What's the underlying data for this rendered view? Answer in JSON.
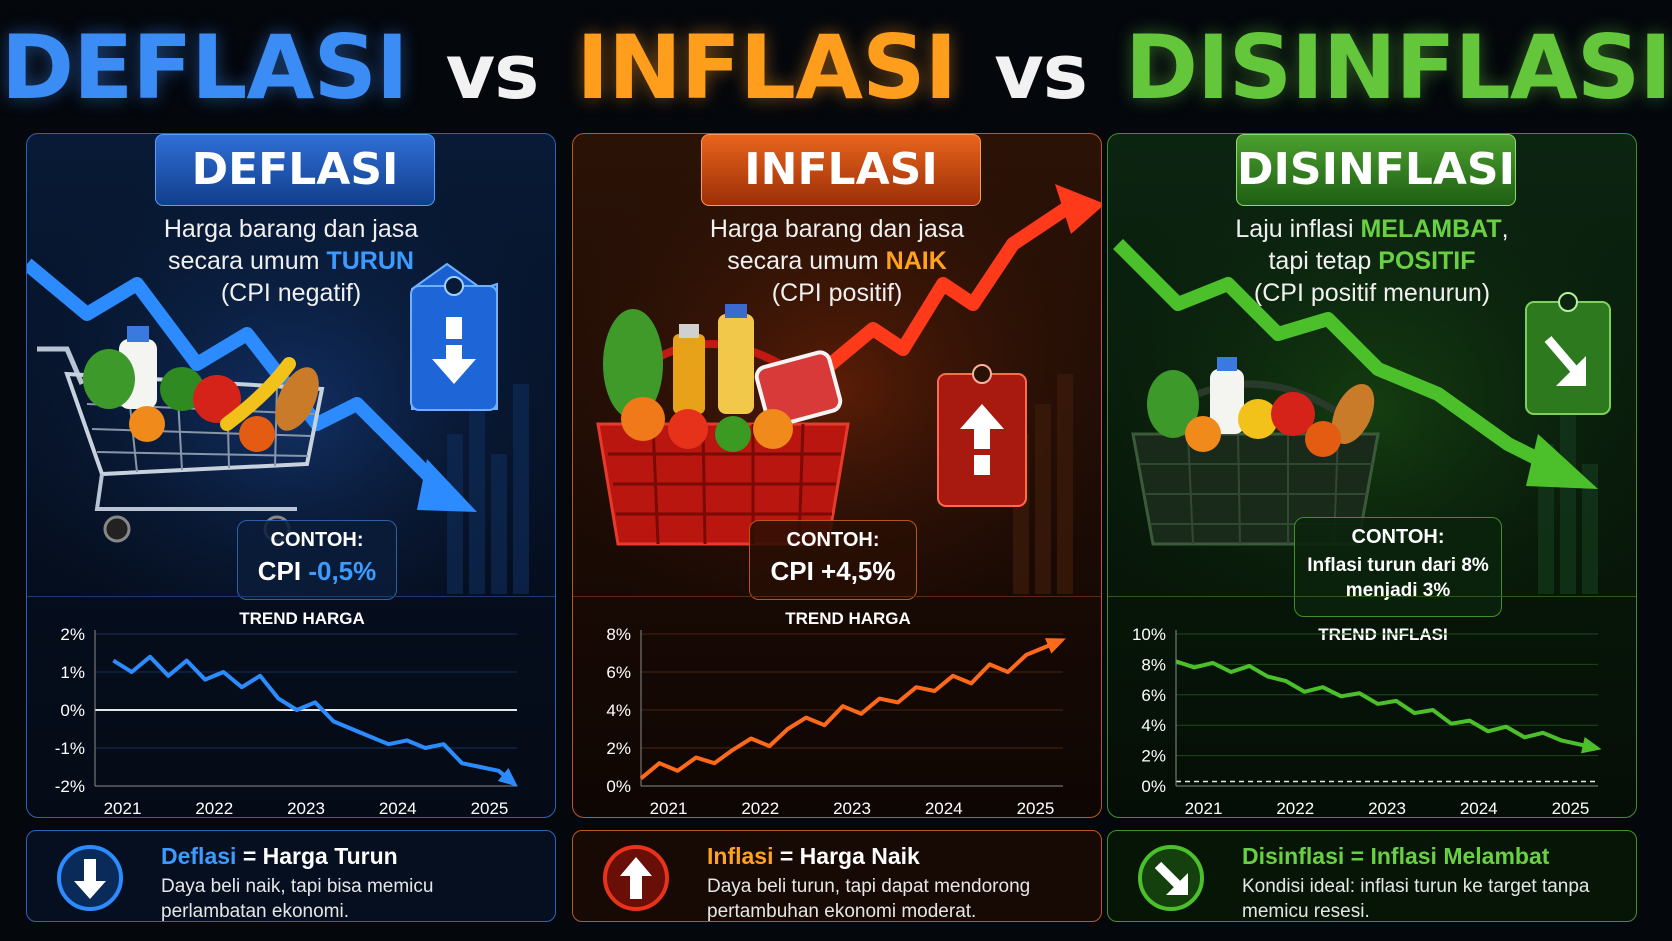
{
  "title": {
    "part1": "DEFLASI",
    "vs1": "vs",
    "part2": "INFLASI",
    "vs2": "vs",
    "part3": "DISINFLASI"
  },
  "colors": {
    "deflasi": "#3b8cf5",
    "inflasi": "#ff9d1c",
    "disinflasi": "#63c63b"
  },
  "panels": [
    {
      "badge": "DEFLASI",
      "desc_line1": "Harga barang dan jasa",
      "desc_line2_pre": "secara umum ",
      "desc_line2_hl": "TURUN",
      "desc_line2_post": "",
      "desc_line3": "(CPI negatif)",
      "tag_icon": "arrow-down-icon",
      "example_label": "CONTOH:",
      "example_pre": "CPI ",
      "example_hl": "-0,5%",
      "example_line2": "",
      "chart_title": "TREND HARGA"
    },
    {
      "badge": "INFLASI",
      "desc_line1": "Harga barang dan jasa",
      "desc_line2_pre": "secara umum ",
      "desc_line2_hl": "NAIK",
      "desc_line2_post": "",
      "desc_line3": "(CPI positif)",
      "tag_icon": "arrow-up-icon",
      "example_label": "CONTOH:",
      "example_pre": "CPI +4,5%",
      "example_hl": "",
      "example_line2": "",
      "chart_title": "TREND HARGA"
    },
    {
      "badge": "DISINFLASI",
      "desc_line1_pre": "Laju inflasi ",
      "desc_line1_hl": "MELAMBAT",
      "desc_line1_post": ",",
      "desc_line2_pre": "tapi tetap ",
      "desc_line2_hl": "POSITIF",
      "desc_line2_post": "",
      "desc_line3": "(CPI positif menurun)",
      "tag_icon": "arrow-down-right-icon",
      "example_label": "CONTOH:",
      "example_pre": "Inflasi turun dari 8%",
      "example_hl": "",
      "example_line2": "menjadi 3%",
      "chart_title": "TREND INFLASI"
    }
  ],
  "chart_data": [
    {
      "type": "line",
      "title": "TREND HARGA",
      "x": [
        2020.9,
        2021.1,
        2021.3,
        2021.5,
        2021.7,
        2021.9,
        2022.1,
        2022.3,
        2022.5,
        2022.7,
        2022.9,
        2023.1,
        2023.3,
        2023.5,
        2023.7,
        2023.9,
        2024.1,
        2024.3,
        2024.5,
        2024.7,
        2024.9,
        2025.1,
        2025.2
      ],
      "values": [
        1.3,
        1.0,
        1.4,
        0.9,
        1.3,
        0.8,
        1.0,
        0.6,
        0.9,
        0.3,
        0.0,
        0.2,
        -0.3,
        -0.5,
        -0.7,
        -0.9,
        -0.8,
        -1.0,
        -0.9,
        -1.4,
        -1.5,
        -1.6,
        -1.8
      ],
      "xticks": [
        "2021",
        "2022",
        "2023",
        "2024",
        "2025"
      ],
      "yticks": [
        "2%",
        "1%",
        "0%",
        "-1%",
        "-2%"
      ],
      "ylim": [
        -2,
        2
      ],
      "zero_line": true
    },
    {
      "type": "line",
      "title": "TREND HARGA",
      "x": [
        2020.7,
        2020.9,
        2021.1,
        2021.3,
        2021.5,
        2021.7,
        2021.9,
        2022.1,
        2022.3,
        2022.5,
        2022.7,
        2022.9,
        2023.1,
        2023.3,
        2023.5,
        2023.7,
        2023.9,
        2024.1,
        2024.3,
        2024.5,
        2024.7,
        2024.9,
        2025.2
      ],
      "values": [
        0.4,
        1.2,
        0.8,
        1.5,
        1.2,
        1.9,
        2.5,
        2.1,
        3.0,
        3.6,
        3.2,
        4.2,
        3.8,
        4.6,
        4.4,
        5.2,
        5.0,
        5.8,
        5.4,
        6.4,
        6.0,
        6.9,
        7.5
      ],
      "xticks": [
        "2021",
        "2022",
        "2023",
        "2024",
        "2025"
      ],
      "yticks": [
        "8%",
        "6%",
        "4%",
        "2%",
        "0%"
      ],
      "ylim": [
        0,
        8
      ],
      "zero_line": false
    },
    {
      "type": "line",
      "title": "TREND INFLASI",
      "x": [
        2020.7,
        2020.9,
        2021.1,
        2021.3,
        2021.5,
        2021.7,
        2021.9,
        2022.1,
        2022.3,
        2022.5,
        2022.7,
        2022.9,
        2023.1,
        2023.3,
        2023.5,
        2023.7,
        2023.9,
        2024.1,
        2024.3,
        2024.5,
        2024.7,
        2024.9,
        2025.2
      ],
      "values": [
        8.2,
        7.8,
        8.1,
        7.5,
        7.9,
        7.2,
        6.9,
        6.2,
        6.5,
        5.9,
        6.1,
        5.4,
        5.6,
        4.8,
        5.0,
        4.1,
        4.3,
        3.6,
        3.9,
        3.2,
        3.5,
        3.0,
        2.6
      ],
      "xticks": [
        "2021",
        "2022",
        "2023",
        "2024",
        "2025"
      ],
      "yticks": [
        "10%",
        "8%",
        "6%",
        "4%",
        "2%",
        "0%"
      ],
      "ylim": [
        0,
        10
      ],
      "zero_line": true
    }
  ],
  "footers": [
    {
      "icon": "arrow-down-circle-icon",
      "term": "Deflasi",
      "eq": " = Harga Turun",
      "text": "Daya beli naik, tapi bisa memicu perlambatan ekonomi."
    },
    {
      "icon": "arrow-up-circle-icon",
      "term": "Inflasi",
      "eq": " = Harga Naik",
      "text": "Daya beli turun, tapi dapat mendorong pertambuhan ekonomi moderat."
    },
    {
      "icon": "arrow-down-right-circle-icon",
      "term": "Disinflasi",
      "eq": " = Inflasi Melambat",
      "text": "Kondisi ideal: inflasi turun ke target tanpa memicu resesi."
    }
  ]
}
